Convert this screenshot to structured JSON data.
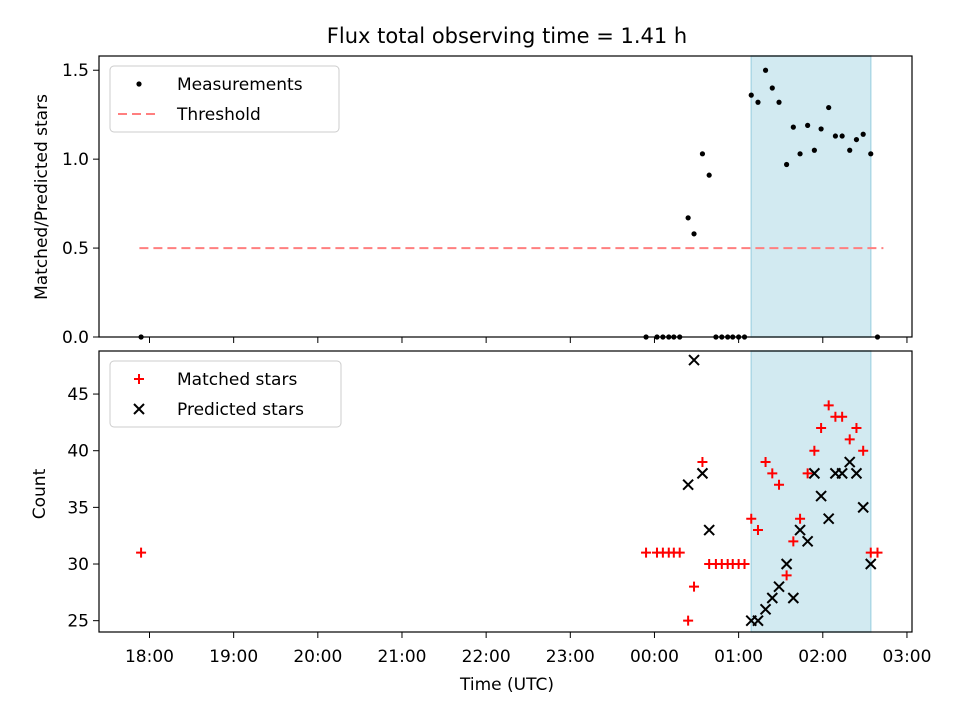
{
  "title": "Flux total observing time = 1.41 h",
  "colors": {
    "measure": "#000000",
    "threshold": "#ff7f7f",
    "matched": "#ff0000",
    "predicted": "#000000",
    "band": "#add8e6"
  },
  "chart_data": [
    {
      "type": "scatter",
      "ylabel": "Matched/Predicted stars",
      "xlabel": "",
      "xlim": [
        -6.6,
        3.06
      ],
      "ylim": [
        0,
        1.58
      ],
      "yticks": [
        0.0,
        0.5,
        1.0,
        1.5
      ],
      "ytick_labels": [
        "0.0",
        "0.5",
        "1.0",
        "1.5"
      ],
      "legend": [
        "Measurements",
        "Threshold"
      ],
      "legend_position": "upper-left",
      "threshold": {
        "value": 0.5,
        "x_start": -6.12,
        "x_end": 2.72
      },
      "band": [
        1.15,
        2.57
      ],
      "series": [
        {
          "name": "Measurements",
          "x": [
            -6.1,
            -0.1,
            0.03,
            0.1,
            0.17,
            0.23,
            0.3,
            0.4,
            0.47,
            0.57,
            0.65,
            0.73,
            0.8,
            0.87,
            0.93,
            1.0,
            1.07,
            1.15,
            1.23,
            1.32,
            1.4,
            1.48,
            1.57,
            1.65,
            1.73,
            1.82,
            1.9,
            1.98,
            2.07,
            2.15,
            2.23,
            2.32,
            2.4,
            2.48,
            2.57,
            2.65
          ],
          "y": [
            0,
            0,
            0,
            0,
            0,
            0,
            0,
            0.67,
            0.58,
            1.03,
            0.91,
            0,
            0,
            0,
            0,
            0,
            0,
            1.36,
            1.32,
            1.5,
            1.4,
            1.32,
            0.97,
            1.18,
            1.03,
            1.19,
            1.05,
            1.17,
            1.29,
            1.13,
            1.13,
            1.05,
            1.11,
            1.14,
            1.03,
            0
          ]
        }
      ]
    },
    {
      "type": "scatter",
      "ylabel": "Count",
      "xlabel": "Time (UTC)",
      "xlim": [
        -6.6,
        3.06
      ],
      "ylim": [
        24,
        48.8
      ],
      "yticks": [
        25,
        30,
        35,
        40,
        45
      ],
      "ytick_labels": [
        "25",
        "30",
        "35",
        "40",
        "45"
      ],
      "xticks": [
        -6,
        -5,
        -4,
        -3,
        -2,
        -1,
        0,
        1,
        2,
        3
      ],
      "xtick_labels": [
        "18:00",
        "19:00",
        "20:00",
        "21:00",
        "22:00",
        "23:00",
        "00:00",
        "01:00",
        "02:00",
        "03:00"
      ],
      "legend": [
        "Matched stars",
        "Predicted stars"
      ],
      "legend_position": "upper-left",
      "band": [
        1.15,
        2.57
      ],
      "series": [
        {
          "name": "Matched stars",
          "marker": "+",
          "x": [
            -6.1,
            -0.1,
            0.03,
            0.1,
            0.17,
            0.23,
            0.3,
            0.4,
            0.47,
            0.57,
            0.65,
            0.73,
            0.8,
            0.87,
            0.93,
            1.0,
            1.07,
            1.15,
            1.23,
            1.32,
            1.4,
            1.48,
            1.57,
            1.65,
            1.73,
            1.82,
            1.9,
            1.98,
            2.07,
            2.15,
            2.23,
            2.32,
            2.4,
            2.48,
            2.57,
            2.65
          ],
          "y": [
            31,
            31,
            31,
            31,
            31,
            31,
            31,
            25,
            28,
            39,
            30,
            30,
            30,
            30,
            30,
            30,
            30,
            34,
            33,
            39,
            38,
            37,
            29,
            32,
            34,
            38,
            40,
            42,
            44,
            43,
            43,
            41,
            42,
            40,
            31,
            31
          ]
        },
        {
          "name": "Predicted stars",
          "marker": "x",
          "x": [
            0.4,
            0.47,
            0.57,
            0.65,
            1.15,
            1.23,
            1.32,
            1.4,
            1.48,
            1.57,
            1.65,
            1.73,
            1.82,
            1.9,
            1.98,
            2.07,
            2.15,
            2.23,
            2.32,
            2.4,
            2.48,
            2.57
          ],
          "y": [
            37,
            48,
            38,
            33,
            25,
            25,
            26,
            27,
            28,
            30,
            27,
            33,
            32,
            38,
            36,
            34,
            38,
            38,
            39,
            38,
            35,
            30
          ]
        }
      ]
    }
  ]
}
